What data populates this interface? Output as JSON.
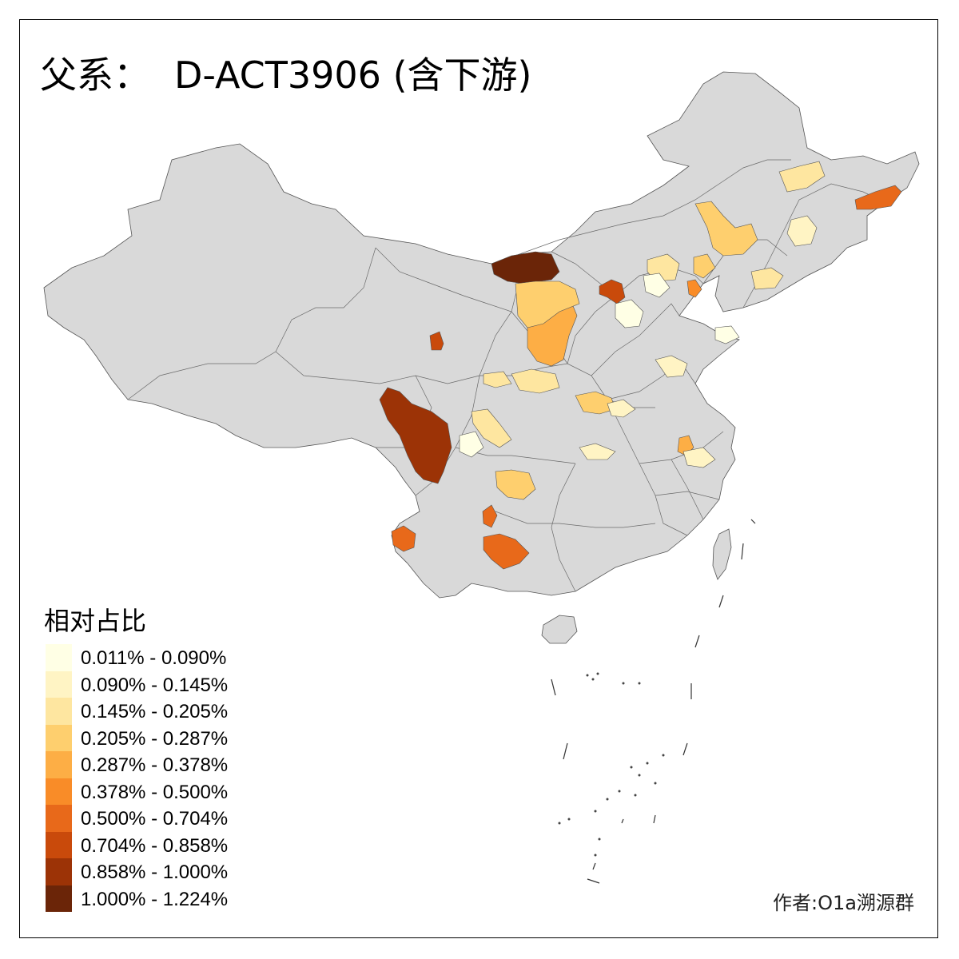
{
  "title": {
    "prefix": "父系：",
    "haplogroup": "D-ACT3906 (含下游)"
  },
  "legend": {
    "title": "相对占比",
    "bins": [
      {
        "label": "0.011% - 0.090%",
        "color": "#ffffe5"
      },
      {
        "label": "0.090% - 0.145%",
        "color": "#fff4c4"
      },
      {
        "label": "0.145% - 0.205%",
        "color": "#fee6a0"
      },
      {
        "label": "0.205% - 0.287%",
        "color": "#fecf6e"
      },
      {
        "label": "0.287% - 0.378%",
        "color": "#fdae45"
      },
      {
        "label": "0.378% - 0.500%",
        "color": "#f98c28"
      },
      {
        "label": "0.500% - 0.704%",
        "color": "#e8691a"
      },
      {
        "label": "0.704% - 0.858%",
        "color": "#c94a0b"
      },
      {
        "label": "0.858% - 1.000%",
        "color": "#9c3306"
      },
      {
        "label": "1.000% - 1.224%",
        "color": "#6b2508"
      }
    ]
  },
  "credit": "作者:O1a溯源群",
  "colors": {
    "land": "#d9d9d9",
    "border": "#555555",
    "background": "#ffffff"
  }
}
